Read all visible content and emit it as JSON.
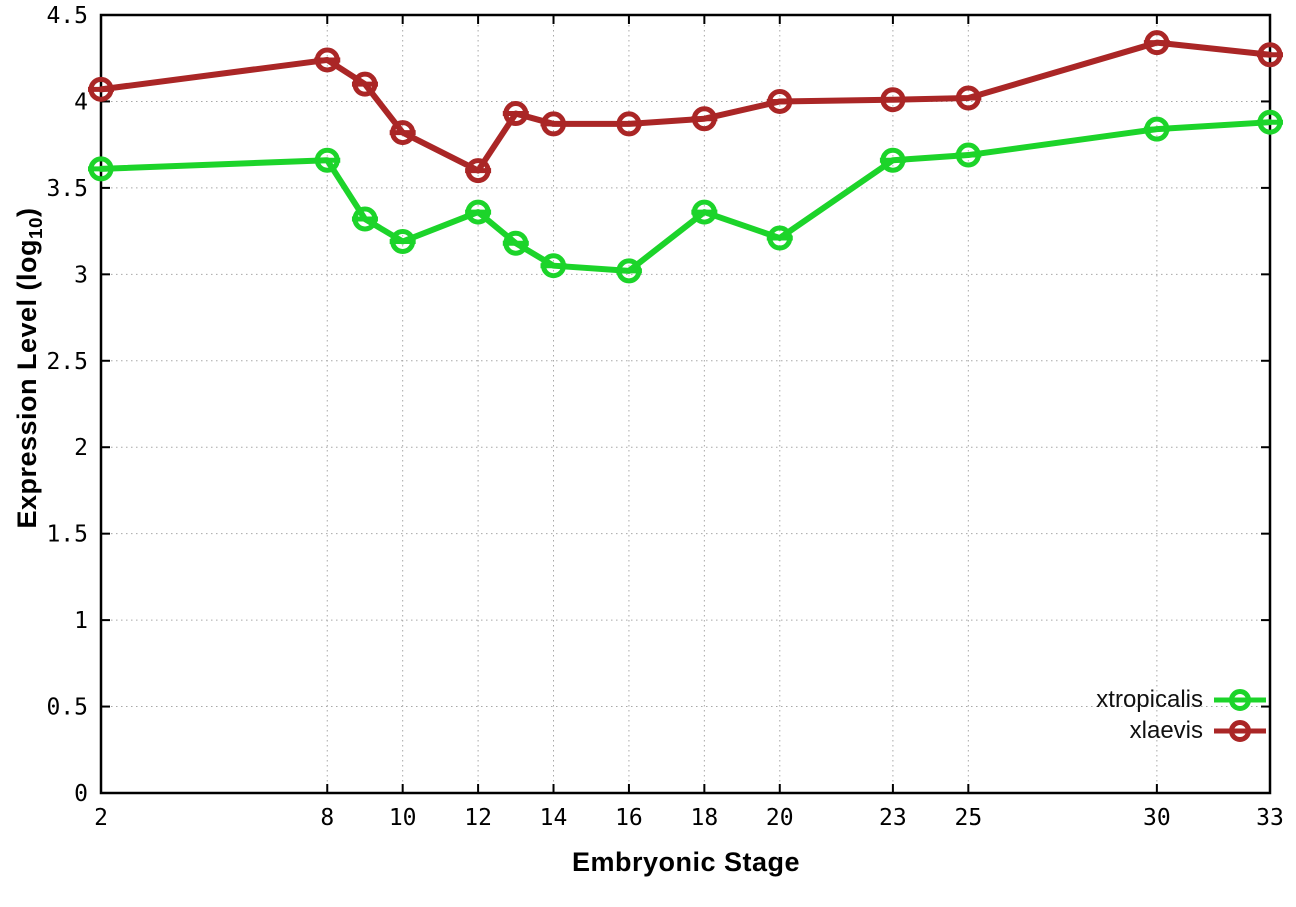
{
  "chart_data": {
    "type": "line",
    "title": "",
    "xlabel": "Embryonic Stage",
    "ylabel": "Expression Level (log10)",
    "xlim": [
      2,
      33
    ],
    "ylim": [
      0,
      4.5
    ],
    "grid": true,
    "grid_style": "dotted",
    "legend_position": "inside bottom-right",
    "x": [
      2,
      8,
      9,
      10,
      12,
      13,
      14,
      16,
      18,
      20,
      23,
      25,
      30,
      33
    ],
    "xticks": [
      2,
      8,
      10,
      12,
      14,
      16,
      18,
      20,
      23,
      25,
      30,
      33
    ],
    "xtick_labels": [
      "2",
      "8",
      "10",
      "12",
      "14",
      "16",
      "18",
      "20",
      "23",
      "25",
      "30",
      "33"
    ],
    "yticks": [
      0,
      0.5,
      1,
      1.5,
      2,
      2.5,
      3,
      3.5,
      4,
      4.5
    ],
    "ytick_labels": [
      "0",
      "0.5",
      "1",
      "1.5",
      "2",
      "2.5",
      "3",
      "3.5",
      "4",
      "4.5"
    ],
    "marker": "open-circle-with-dash",
    "series": [
      {
        "name": "xtropicalis",
        "color": "#1cd42a",
        "values": [
          3.61,
          3.66,
          3.32,
          3.19,
          3.36,
          3.18,
          3.05,
          3.02,
          3.36,
          3.21,
          3.66,
          3.69,
          3.84,
          3.88
        ]
      },
      {
        "name": "xlaevis",
        "color": "#aa2626",
        "values": [
          4.07,
          4.24,
          4.1,
          3.82,
          3.6,
          3.93,
          3.87,
          3.87,
          3.9,
          4.0,
          4.01,
          4.02,
          4.34,
          4.27
        ]
      }
    ]
  },
  "labels": {
    "xlabel": "Embryonic Stage",
    "ylabel_main": "Expression Level (log",
    "ylabel_sub": "10",
    "ylabel_close": ")"
  },
  "colors": {
    "axis": "#000000",
    "grid": "#a8a8a8",
    "background": "#ffffff"
  }
}
